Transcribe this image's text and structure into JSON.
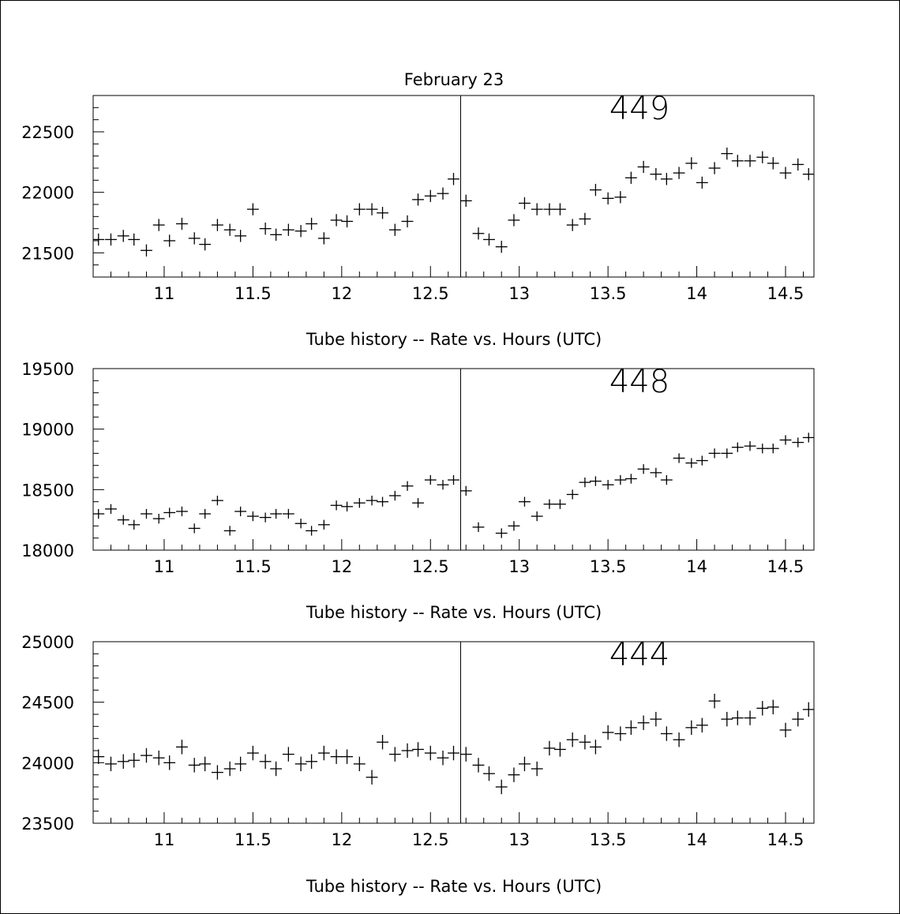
{
  "page": {
    "date_title": "February 23"
  },
  "chart_data": [
    {
      "type": "scatter",
      "label": "449",
      "xlabel": "Tube history -- Rate vs. Hours (UTC)",
      "xlim": [
        10.6,
        14.66
      ],
      "ylim": [
        21300,
        22800
      ],
      "xticks": [
        "11",
        "11.5",
        "12",
        "12.5",
        "13",
        "13.5",
        "14",
        "14.5"
      ],
      "yticks": [
        "21500",
        "22000",
        "22500"
      ],
      "marker_line_x": 12.67,
      "x_err": 0.033,
      "y_err": 50,
      "points": {
        "x": [
          10.63,
          10.7,
          10.77,
          10.83,
          10.9,
          10.97,
          11.03,
          11.1,
          11.17,
          11.23,
          11.3,
          11.37,
          11.43,
          11.5,
          11.57,
          11.63,
          11.7,
          11.77,
          11.83,
          11.9,
          11.97,
          12.03,
          12.1,
          12.17,
          12.23,
          12.3,
          12.37,
          12.43,
          12.5,
          12.57,
          12.63,
          12.7,
          12.77,
          12.83,
          12.9,
          12.97,
          13.03,
          13.1,
          13.17,
          13.23,
          13.3,
          13.37,
          13.43,
          13.5,
          13.57,
          13.63,
          13.7,
          13.77,
          13.83,
          13.9,
          13.97,
          14.03,
          14.1,
          14.17,
          14.23,
          14.3,
          14.37,
          14.43,
          14.5,
          14.57,
          14.63
        ],
        "y": [
          21610,
          21610,
          21640,
          21610,
          21520,
          21730,
          21600,
          21740,
          21620,
          21570,
          21730,
          21690,
          21640,
          21860,
          21700,
          21650,
          21690,
          21680,
          21740,
          21620,
          21770,
          21760,
          21860,
          21860,
          21830,
          21690,
          21760,
          21940,
          21970,
          21990,
          22110,
          21930,
          21660,
          21610,
          21550,
          21770,
          21910,
          21860,
          21860,
          21860,
          21730,
          21780,
          22020,
          21950,
          21960,
          22120,
          22210,
          22150,
          22110,
          22160,
          22240,
          22080,
          22200,
          22320,
          22260,
          22260,
          22290,
          22240,
          22160,
          22230,
          22150
        ]
      }
    },
    {
      "type": "scatter",
      "label": "448",
      "xlabel": "Tube history -- Rate vs. Hours (UTC)",
      "xlim": [
        10.6,
        14.66
      ],
      "ylim": [
        18000,
        19500
      ],
      "xticks": [
        "11",
        "11.5",
        "12",
        "12.5",
        "13",
        "13.5",
        "14",
        "14.5"
      ],
      "yticks": [
        "18000",
        "18500",
        "19000",
        "19500"
      ],
      "marker_line_x": 12.67,
      "x_err": 0.033,
      "y_err": 40,
      "points": {
        "x": [
          10.63,
          10.7,
          10.77,
          10.83,
          10.9,
          10.97,
          11.03,
          11.1,
          11.17,
          11.23,
          11.3,
          11.37,
          11.43,
          11.5,
          11.57,
          11.63,
          11.7,
          11.77,
          11.83,
          11.9,
          11.97,
          12.03,
          12.1,
          12.17,
          12.23,
          12.3,
          12.37,
          12.43,
          12.5,
          12.57,
          12.63,
          12.7,
          12.77,
          12.9,
          12.97,
          13.03,
          13.1,
          13.17,
          13.23,
          13.3,
          13.37,
          13.43,
          13.5,
          13.57,
          13.63,
          13.7,
          13.77,
          13.83,
          13.9,
          13.97,
          14.03,
          14.1,
          14.17,
          14.23,
          14.3,
          14.37,
          14.43,
          14.5,
          14.57,
          14.63
        ],
        "y": [
          18300,
          18340,
          18250,
          18210,
          18300,
          18260,
          18310,
          18320,
          18180,
          18300,
          18410,
          18160,
          18320,
          18280,
          18270,
          18300,
          18300,
          18220,
          18160,
          18210,
          18370,
          18360,
          18390,
          18410,
          18400,
          18450,
          18530,
          18390,
          18580,
          18540,
          18580,
          18490,
          18190,
          18140,
          18200,
          18400,
          18280,
          18380,
          18380,
          18460,
          18560,
          18570,
          18540,
          18580,
          18590,
          18670,
          18640,
          18580,
          18760,
          18720,
          18740,
          18800,
          18800,
          18850,
          18860,
          18840,
          18840,
          18910,
          18890,
          18930
        ]
      }
    },
    {
      "type": "scatter",
      "label": "444",
      "xlabel": "Tube history -- Rate vs. Hours (UTC)",
      "xlim": [
        10.6,
        14.66
      ],
      "ylim": [
        23500,
        25000
      ],
      "xticks": [
        "11",
        "11.5",
        "12",
        "12.5",
        "13",
        "13.5",
        "14",
        "14.5"
      ],
      "yticks": [
        "23500",
        "24000",
        "24500",
        "25000"
      ],
      "marker_line_x": 12.67,
      "x_err": 0.033,
      "y_err": 60,
      "points": {
        "x": [
          10.63,
          10.7,
          10.77,
          10.83,
          10.9,
          10.97,
          11.03,
          11.1,
          11.17,
          11.23,
          11.3,
          11.37,
          11.43,
          11.5,
          11.57,
          11.63,
          11.7,
          11.77,
          11.83,
          11.9,
          11.97,
          12.03,
          12.1,
          12.17,
          12.23,
          12.3,
          12.37,
          12.43,
          12.5,
          12.57,
          12.63,
          12.7,
          12.77,
          12.83,
          12.9,
          12.97,
          13.03,
          13.1,
          13.17,
          13.23,
          13.3,
          13.37,
          13.43,
          13.5,
          13.57,
          13.63,
          13.7,
          13.77,
          13.83,
          13.9,
          13.97,
          14.03,
          14.1,
          14.17,
          14.23,
          14.3,
          14.37,
          14.43,
          14.5,
          14.57,
          14.63
        ],
        "y": [
          24050,
          23990,
          24010,
          24020,
          24060,
          24040,
          24000,
          24130,
          23980,
          23990,
          23920,
          23950,
          23990,
          24080,
          24010,
          23950,
          24070,
          23990,
          24010,
          24080,
          24050,
          24050,
          23990,
          23880,
          24170,
          24070,
          24100,
          24110,
          24080,
          24040,
          24080,
          24070,
          23980,
          23910,
          23800,
          23900,
          23990,
          23950,
          24120,
          24110,
          24190,
          24170,
          24130,
          24250,
          24240,
          24290,
          24330,
          24360,
          24240,
          24190,
          24290,
          24310,
          24510,
          24360,
          24370,
          24370,
          24450,
          24460,
          24270,
          24360,
          24440
        ]
      }
    }
  ]
}
